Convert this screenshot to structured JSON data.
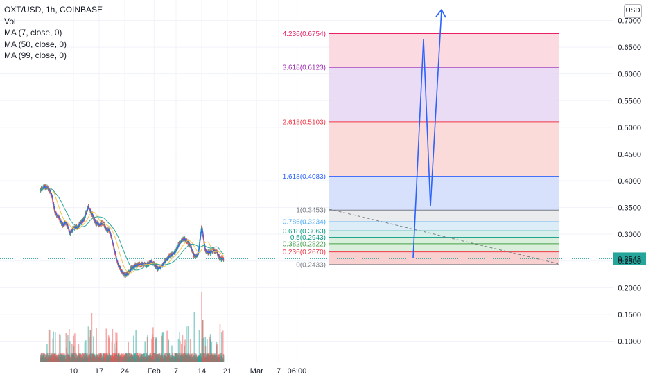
{
  "legend": {
    "symbol": "OXT/USD, 1h, COINBASE",
    "vol": "Vol",
    "ma7": "MA (7, close, 0)",
    "ma50": "MA (50, close, 0)",
    "ma99": "MA (99, close, 0)"
  },
  "currency_button": "USD",
  "price_label": "0.2543",
  "colors": {
    "up": "#26a69a",
    "down": "#ef5350",
    "ma7": "#2962ff",
    "ma50": "#f7c548",
    "ma99": "#26a69a",
    "arrow": "#2962ff",
    "price_tag": "#26a69a"
  },
  "chart_data": {
    "type": "candlestick",
    "y_axis": {
      "ylim": [
        0.05,
        0.715
      ],
      "ticks": [
        "0.7000",
        "0.6500",
        "0.6000",
        "0.5500",
        "0.5000",
        "0.4500",
        "0.4000",
        "0.3500",
        "0.3000",
        "0.2500",
        "0.2000",
        "0.1500",
        "0.1000"
      ],
      "tick_values": [
        0.7,
        0.65,
        0.6,
        0.55,
        0.5,
        0.45,
        0.4,
        0.35,
        0.3,
        0.25,
        0.2,
        0.15,
        0.1
      ]
    },
    "x_axis": {
      "ticks": [
        "10",
        "17",
        "24",
        "Feb",
        "7",
        "14",
        "21",
        "Mar",
        "7",
        "06:00"
      ],
      "tick_days": [
        10,
        17,
        24,
        32,
        38,
        45,
        52,
        60,
        66,
        71
      ]
    },
    "last_price": 0.2543,
    "price_path": [
      [
        1,
        0.383
      ],
      [
        2,
        0.388
      ],
      [
        3,
        0.387
      ],
      [
        4,
        0.375
      ],
      [
        5,
        0.34
      ],
      [
        6,
        0.33
      ],
      [
        7,
        0.318
      ],
      [
        8,
        0.322
      ],
      [
        9,
        0.302
      ],
      [
        10,
        0.312
      ],
      [
        11,
        0.313
      ],
      [
        12,
        0.322
      ],
      [
        13,
        0.33
      ],
      [
        14,
        0.352
      ],
      [
        15,
        0.338
      ],
      [
        16,
        0.322
      ],
      [
        17,
        0.318
      ],
      [
        18,
        0.322
      ],
      [
        19,
        0.31
      ],
      [
        20,
        0.305
      ],
      [
        21,
        0.275
      ],
      [
        22,
        0.245
      ],
      [
        23,
        0.232
      ],
      [
        24,
        0.224
      ],
      [
        25,
        0.228
      ],
      [
        26,
        0.238
      ],
      [
        27,
        0.242
      ],
      [
        28,
        0.243
      ],
      [
        29,
        0.244
      ],
      [
        30,
        0.242
      ],
      [
        31,
        0.249
      ],
      [
        32,
        0.244
      ],
      [
        33,
        0.236
      ],
      [
        34,
        0.24
      ],
      [
        35,
        0.249
      ],
      [
        36,
        0.258
      ],
      [
        37,
        0.262
      ],
      [
        38,
        0.27
      ],
      [
        39,
        0.285
      ],
      [
        40,
        0.292
      ],
      [
        41,
        0.288
      ],
      [
        42,
        0.277
      ],
      [
        43,
        0.258
      ],
      [
        44,
        0.262
      ],
      [
        45,
        0.315
      ],
      [
        46,
        0.268
      ],
      [
        47,
        0.265
      ],
      [
        48,
        0.27
      ],
      [
        49,
        0.268
      ],
      [
        50,
        0.255
      ],
      [
        51,
        0.2543
      ]
    ],
    "fibonacci": [
      {
        "ratio": "0",
        "price": 0.2433,
        "label": "0(0.2433)",
        "color": "#787b86"
      },
      {
        "ratio": "0.236",
        "price": 0.267,
        "label": "0.236(0.2670)",
        "color": "#f23645"
      },
      {
        "ratio": "0.382",
        "price": 0.2822,
        "label": "0.382(0.2822)",
        "color": "#43a047"
      },
      {
        "ratio": "0.5",
        "price": 0.2943,
        "label": "0.5(0.2943)",
        "color": "#089981"
      },
      {
        "ratio": "0.618",
        "price": 0.3063,
        "label": "0.618(0.3063)",
        "color": "#089981"
      },
      {
        "ratio": "0.786",
        "price": 0.3234,
        "label": "0.786(0.3234)",
        "color": "#42a5f5"
      },
      {
        "ratio": "1",
        "price": 0.3453,
        "label": "1(0.3453)",
        "color": "#787b86"
      },
      {
        "ratio": "1.618",
        "price": 0.4083,
        "label": "1.618(0.4083)",
        "color": "#2962ff"
      },
      {
        "ratio": "2.618",
        "price": 0.5103,
        "label": "2.618(0.5103)",
        "color": "#f23645"
      },
      {
        "ratio": "3.618",
        "price": 0.6123,
        "label": "3.618(0.6123)",
        "color": "#9c27b0"
      },
      {
        "ratio": "4.236",
        "price": 0.6754,
        "label": "4.236(0.6754)",
        "color": "#e91e63"
      }
    ],
    "trendline": {
      "from": [
        39,
        0.347
      ],
      "to": [
        68,
        0.245
      ]
    },
    "projection": [
      [
        51,
        0.255
      ],
      [
        53,
        0.665
      ],
      [
        54,
        0.352
      ],
      [
        56,
        0.72
      ]
    ]
  }
}
